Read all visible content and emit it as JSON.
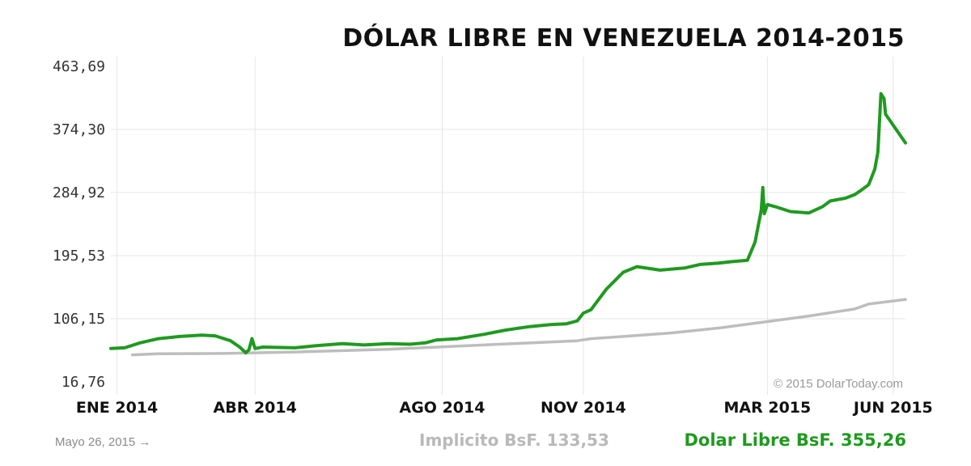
{
  "chart_data": {
    "type": "line",
    "title": "DÓLAR LIBRE EN VENEZUELA 2014-2015",
    "ylim": [
      16.76,
      463.69
    ],
    "yticks": [
      "463,69",
      "374,30",
      "284,92",
      "195,53",
      "106,15",
      "16,76"
    ],
    "xlim": [
      "2014-01-01",
      "2015-06-03"
    ],
    "xticks": [
      {
        "date": "2014-01-05",
        "label": "ENE 2014"
      },
      {
        "date": "2014-04-05",
        "label": "ABR 2014"
      },
      {
        "date": "2014-08-05",
        "label": "AGO 2014"
      },
      {
        "date": "2014-11-05",
        "label": "NOV 2014"
      },
      {
        "date": "2015-03-05",
        "label": "MAR 2015"
      },
      {
        "date": "2015-05-26",
        "label": "JUN 2015"
      }
    ],
    "grid": true,
    "watermark": "© 2015 DolarToday.com",
    "series": [
      {
        "name": "Dolar Libre",
        "color": "#1f9a1f",
        "points": [
          [
            "2014-01-01",
            64.0
          ],
          [
            "2014-01-10",
            65.0
          ],
          [
            "2014-01-20",
            72.0
          ],
          [
            "2014-02-01",
            78.0
          ],
          [
            "2014-02-15",
            81.0
          ],
          [
            "2014-03-01",
            83.0
          ],
          [
            "2014-03-10",
            82.0
          ],
          [
            "2014-03-20",
            75.0
          ],
          [
            "2014-03-26",
            66.0
          ],
          [
            "2014-03-30",
            58.0
          ],
          [
            "2014-04-01",
            62.0
          ],
          [
            "2014-04-03",
            78.0
          ],
          [
            "2014-04-05",
            64.0
          ],
          [
            "2014-04-10",
            66.0
          ],
          [
            "2014-05-01",
            65.0
          ],
          [
            "2014-05-15",
            68.0
          ],
          [
            "2014-06-01",
            71.0
          ],
          [
            "2014-06-15",
            69.0
          ],
          [
            "2014-07-01",
            71.0
          ],
          [
            "2014-07-15",
            70.0
          ],
          [
            "2014-07-25",
            72.0
          ],
          [
            "2014-08-01",
            76.0
          ],
          [
            "2014-08-15",
            78.0
          ],
          [
            "2014-09-01",
            84.0
          ],
          [
            "2014-09-15",
            90.0
          ],
          [
            "2014-10-01",
            95.0
          ],
          [
            "2014-10-15",
            98.0
          ],
          [
            "2014-10-25",
            99.0
          ],
          [
            "2014-11-01",
            103.0
          ],
          [
            "2014-11-05",
            114.0
          ],
          [
            "2014-11-10",
            119.0
          ],
          [
            "2014-11-20",
            148.0
          ],
          [
            "2014-12-01",
            172.0
          ],
          [
            "2014-12-10",
            180.0
          ],
          [
            "2014-12-25",
            175.0
          ],
          [
            "2015-01-10",
            178.0
          ],
          [
            "2015-01-20",
            183.0
          ],
          [
            "2015-02-01",
            185.0
          ],
          [
            "2015-02-10",
            187.0
          ],
          [
            "2015-02-20",
            189.0
          ],
          [
            "2015-02-25",
            215.0
          ],
          [
            "2015-03-01",
            260.0
          ],
          [
            "2015-03-02",
            292.0
          ],
          [
            "2015-03-03",
            255.0
          ],
          [
            "2015-03-05",
            268.0
          ],
          [
            "2015-03-10",
            265.0
          ],
          [
            "2015-03-20",
            258.0
          ],
          [
            "2015-04-01",
            256.0
          ],
          [
            "2015-04-10",
            265.0
          ],
          [
            "2015-04-15",
            273.0
          ],
          [
            "2015-04-25",
            277.0
          ],
          [
            "2015-05-01",
            282.0
          ],
          [
            "2015-05-05",
            288.0
          ],
          [
            "2015-05-10",
            296.0
          ],
          [
            "2015-05-14",
            318.0
          ],
          [
            "2015-05-16",
            342.0
          ],
          [
            "2015-05-18",
            425.0
          ],
          [
            "2015-05-20",
            418.0
          ],
          [
            "2015-05-21",
            396.0
          ],
          [
            "2015-06-03",
            355.26
          ]
        ]
      },
      {
        "name": "Implícito",
        "color": "#bdbdbd",
        "points": [
          [
            "2014-01-15",
            55.0
          ],
          [
            "2014-02-01",
            56.5
          ],
          [
            "2014-03-15",
            57.0
          ],
          [
            "2014-05-01",
            59.0
          ],
          [
            "2014-07-01",
            63.0
          ],
          [
            "2014-09-01",
            69.0
          ],
          [
            "2014-11-01",
            75.0
          ],
          [
            "2014-11-10",
            78.0
          ],
          [
            "2014-12-01",
            81.0
          ],
          [
            "2015-01-01",
            86.0
          ],
          [
            "2015-02-01",
            93.0
          ],
          [
            "2015-03-01",
            101.0
          ],
          [
            "2015-04-01",
            110.0
          ],
          [
            "2015-05-01",
            120.0
          ],
          [
            "2015-05-10",
            127.0
          ],
          [
            "2015-06-03",
            133.53
          ]
        ]
      }
    ]
  },
  "footer": {
    "date_note": "Mayo 26, 2015 →",
    "implicito_label": "Implicito BsF. 133,53",
    "libre_label": "Dolar Libre BsF. 355,26"
  }
}
